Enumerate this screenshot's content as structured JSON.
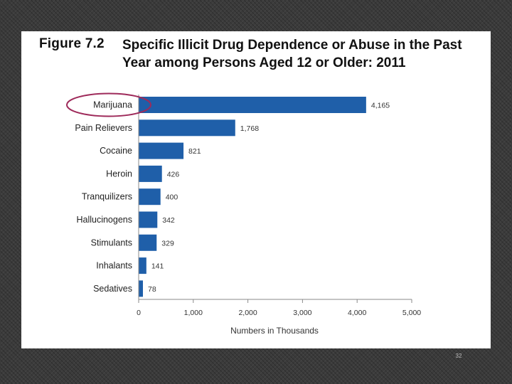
{
  "slide_number": "32",
  "colors": {
    "bar": "#1f5fa9",
    "highlight": "#9e2a5a",
    "axis": "#8a8a8a"
  },
  "chart_data": {
    "type": "bar",
    "orientation": "horizontal",
    "figure_label": "Figure 7.2",
    "title": "Specific Illicit Drug Dependence or Abuse in the Past Year among Persons Aged 12 or Older: 2011",
    "xlabel": "Numbers in Thousands",
    "ylabel": "",
    "xlim": [
      0,
      5000
    ],
    "x_ticks": [
      0,
      1000,
      2000,
      3000,
      4000,
      5000
    ],
    "x_tick_labels": [
      "0",
      "1,000",
      "2,000",
      "3,000",
      "4,000",
      "5,000"
    ],
    "grid": false,
    "categories": [
      "Marijuana",
      "Pain Relievers",
      "Cocaine",
      "Heroin",
      "Tranquilizers",
      "Hallucinogens",
      "Stimulants",
      "Inhalants",
      "Sedatives"
    ],
    "values": [
      4165,
      1768,
      821,
      426,
      400,
      342,
      329,
      141,
      78
    ],
    "value_labels": [
      "4,165",
      "1,768",
      "821",
      "426",
      "400",
      "342",
      "329",
      "141",
      "78"
    ],
    "annotations": [
      {
        "type": "ellipse",
        "target": "Marijuana"
      }
    ]
  }
}
